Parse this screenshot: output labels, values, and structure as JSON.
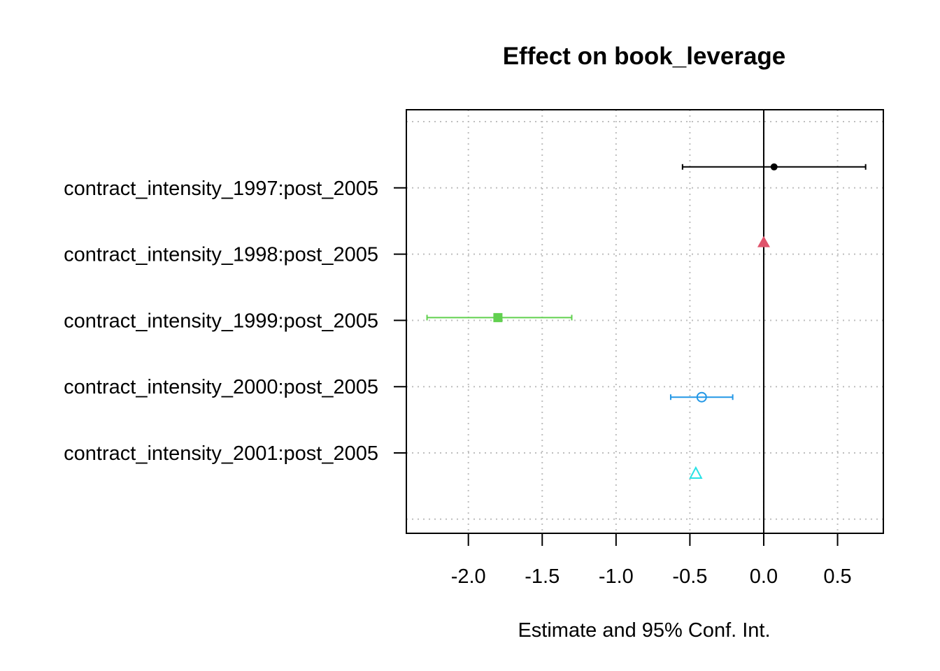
{
  "chart_data": {
    "type": "scatter",
    "title": "Effect on book_leverage",
    "xlabel": "Estimate and 95% Conf. Int.",
    "ylabel": "",
    "xlim": [
      -2.42,
      0.81
    ],
    "xticks": [
      -2.0,
      -1.5,
      -1.0,
      -0.5,
      0.0,
      0.5
    ],
    "xtick_labels": [
      "-2.0",
      "-1.5",
      "-1.0",
      "-0.5",
      "0.0",
      "0.5"
    ],
    "categories": [
      "contract_intensity_1997:post_2005",
      "contract_intensity_1998:post_2005",
      "contract_intensity_1999:post_2005",
      "contract_intensity_2000:post_2005",
      "contract_intensity_2001:post_2005"
    ],
    "grid": true,
    "reference_line_x": 0,
    "series": [
      {
        "color": "#000000",
        "marker": "filled-circle",
        "estimate": 0.07,
        "ci": [
          -0.55,
          0.69
        ]
      },
      {
        "color": "#DF536B",
        "marker": "filled-triangle",
        "estimate": 0.0,
        "ci": [
          0.0,
          0.0
        ]
      },
      {
        "color": "#61D04F",
        "marker": "filled-square",
        "estimate": -1.8,
        "ci": [
          -2.28,
          -1.3
        ]
      },
      {
        "color": "#2297E6",
        "marker": "open-circle",
        "estimate": -0.42,
        "ci": [
          -0.63,
          -0.21
        ]
      },
      {
        "color": "#28E2E5",
        "marker": "open-triangle",
        "estimate": -0.46,
        "ci": [
          -0.46,
          -0.46
        ]
      }
    ]
  }
}
